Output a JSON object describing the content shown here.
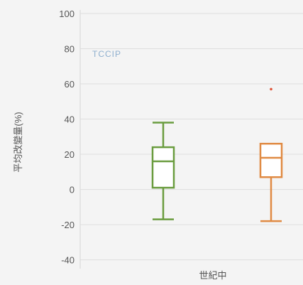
{
  "chart_data": {
    "type": "box",
    "ylabel": "平均改變量(%)",
    "xlabel": "世紀中",
    "watermark": "TCCIP",
    "ylim": [
      -45,
      102
    ],
    "yticks": [
      100,
      80,
      60,
      40,
      20,
      0,
      -20,
      -40
    ],
    "grid": true,
    "series": [
      {
        "color": "#6a9c3f",
        "whisker_low": -17,
        "q1": 1,
        "median": 16,
        "q3": 24,
        "whisker_high": 38,
        "outliers": []
      },
      {
        "color": "#e08a43",
        "whisker_low": -18,
        "q1": 7,
        "median": 18,
        "q3": 26,
        "whisker_high": 26,
        "outliers": [
          57
        ]
      }
    ]
  }
}
